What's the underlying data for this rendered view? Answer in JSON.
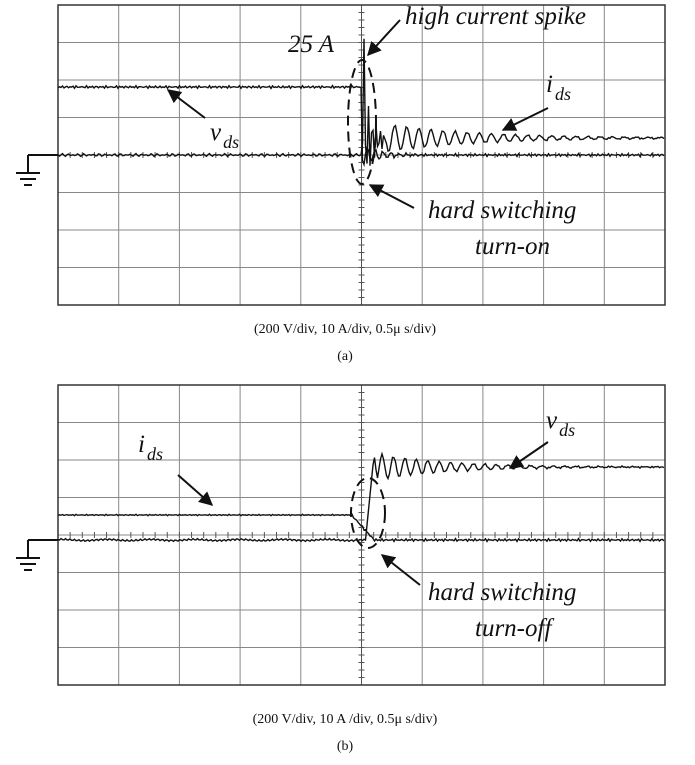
{
  "panels": [
    {
      "annotations": {
        "spike": "high current spike",
        "peak": "25 A",
        "ids_main": "i",
        "ids_sub": "ds",
        "vds_main": "v",
        "vds_sub": "ds",
        "hard1": "hard switching",
        "hard2": "turn-on"
      },
      "caption": "(200 V/div, 10 A/div, 0.5μ s/div)",
      "label": "(a)"
    },
    {
      "annotations": {
        "vds_main": "v",
        "vds_sub": "ds",
        "ids_main": "i",
        "ids_sub": "ds",
        "hard1": "hard switching",
        "hard2": "turn-off"
      },
      "caption": "(200 V/div, 10 A /div, 0.5μ s/div)",
      "label": "(b)"
    }
  ]
}
